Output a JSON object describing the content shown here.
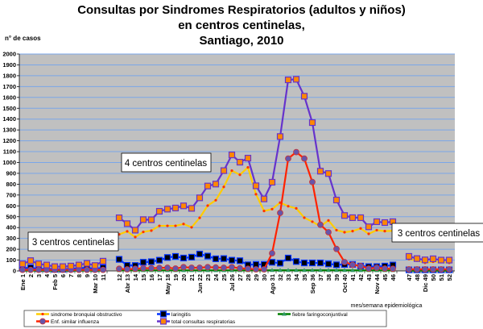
{
  "chart_data": {
    "type": "line",
    "title": [
      "Consultas por Sindromes Respiratorios (adultos y niños)",
      "en centros centinelas,",
      "Santiago, 2010"
    ],
    "ylabel": "n° de casos",
    "xlabel": "mes/semana epidemiológica",
    "ylim": [
      0,
      2000
    ],
    "ytick_step": 100,
    "grid": true,
    "legend_placement": "bottom",
    "x": [
      1,
      2,
      3,
      4,
      5,
      6,
      7,
      8,
      9,
      10,
      11,
      12,
      13,
      14,
      15,
      16,
      17,
      18,
      19,
      20,
      21,
      22,
      23,
      24,
      25,
      26,
      27,
      28,
      29,
      30,
      31,
      32,
      33,
      34,
      35,
      36,
      37,
      38,
      39,
      40,
      41,
      42,
      43,
      44,
      45,
      46,
      47,
      48,
      49,
      50,
      51,
      52
    ],
    "month_labels": {
      "1": "Ene",
      "5": "Feb",
      "10": "Mar",
      "13": "Abr",
      "18": "May",
      "22": "Jun",
      "26": "Jul",
      "31": "Ago",
      "36": "Sep",
      "40": "Oct",
      "44": "Nov",
      "49": "Dic"
    },
    "segments": [
      [
        1,
        11
      ],
      [
        12,
        46
      ],
      [
        47,
        52
      ]
    ],
    "series": [
      {
        "name": "sindrome bronquial obstructivo",
        "color": "#ffcc00",
        "marker": "dot",
        "marker_color": "#ff3300",
        "values": [
          50,
          80,
          50,
          45,
          35,
          35,
          40,
          45,
          55,
          40,
          75,
          337,
          365,
          312,
          360,
          372,
          416,
          416,
          416,
          433,
          402,
          490,
          602,
          652,
          775,
          925,
          887,
          955,
          707,
          553,
          570,
          630,
          597,
          577,
          491,
          454,
          411,
          466,
          376,
          357,
          367,
          392,
          342,
          376,
          367,
          370,
          110,
          95,
          75,
          85,
          85,
          75
        ]
      },
      {
        "name": "laringitis",
        "color": "#0033ff",
        "marker": "square",
        "marker_color": "#000000",
        "values": [
          25,
          30,
          20,
          20,
          15,
          15,
          20,
          25,
          30,
          20,
          30,
          107,
          52,
          50,
          80,
          85,
          99,
          124,
          134,
          119,
          127,
          156,
          137,
          112,
          114,
          99,
          94,
          57,
          60,
          60,
          80,
          72,
          119,
          87,
          74,
          74,
          74,
          65,
          57,
          60,
          60,
          45,
          40,
          40,
          45,
          55,
          10,
          10,
          10,
          10,
          10,
          10
        ]
      },
      {
        "name": "fiebre faringoconjuntival",
        "color": "#008000",
        "marker": "triangle",
        "marker_color": "#339966",
        "values": [
          3,
          3,
          3,
          3,
          3,
          3,
          3,
          3,
          3,
          3,
          3,
          5,
          5,
          5,
          5,
          5,
          5,
          5,
          5,
          5,
          5,
          5,
          5,
          5,
          5,
          5,
          5,
          5,
          5,
          5,
          6,
          6,
          6,
          6,
          6,
          6,
          6,
          6,
          6,
          6,
          5,
          5,
          5,
          5,
          5,
          5,
          3,
          3,
          3,
          3,
          3,
          3
        ]
      },
      {
        "name": "Enf. similar influenza",
        "color": "#ff2200",
        "marker": "circle",
        "marker_color": "#6655aa",
        "values": [
          10,
          10,
          10,
          10,
          10,
          10,
          10,
          10,
          10,
          10,
          10,
          20,
          15,
          20,
          25,
          25,
          28,
          30,
          22,
          35,
          30,
          30,
          35,
          32,
          30,
          35,
          25,
          20,
          15,
          15,
          163,
          535,
          1036,
          1096,
          1036,
          820,
          426,
          357,
          203,
          82,
          57,
          45,
          22,
          30,
          22,
          20,
          15,
          15,
          15,
          15,
          15,
          15
        ]
      },
      {
        "name": "total consultas respiratorias",
        "color": "#6633cc",
        "marker": "square",
        "marker_color": "#ff8800",
        "values": [
          65,
          95,
          65,
          55,
          40,
          40,
          45,
          55,
          70,
          50,
          90,
          490,
          436,
          376,
          473,
          472,
          550,
          570,
          580,
          600,
          577,
          674,
          783,
          801,
          925,
          1070,
          1003,
          1040,
          785,
          664,
          818,
          1239,
          1762,
          1767,
          1611,
          1368,
          920,
          898,
          654,
          511,
          491,
          491,
          407,
          454,
          446,
          454,
          134,
          114,
          102,
          112,
          100,
          100
        ]
      }
    ],
    "annotations": [
      "4 centros centinelas",
      "3 centros centinelas",
      "3 centros centinelas"
    ],
    "colors": {
      "plot_background": "#c0c0c0",
      "gridline": "#7aa6e8"
    }
  }
}
